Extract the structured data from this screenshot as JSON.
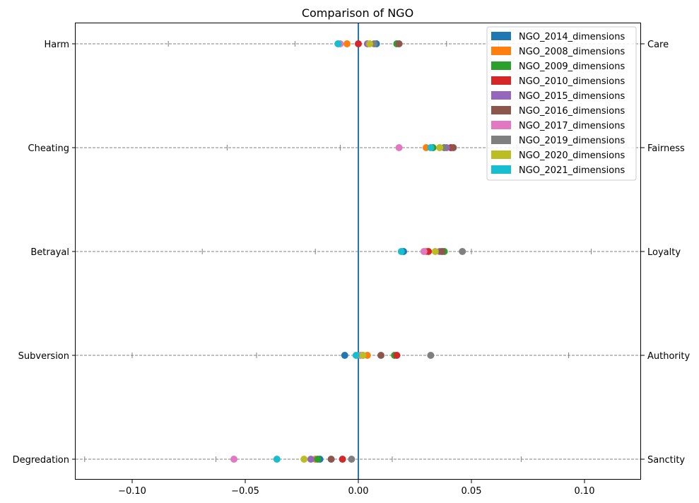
{
  "chart_data": {
    "type": "scatter",
    "title": "Comparison of NGO",
    "xlim": [
      -0.125,
      0.125
    ],
    "x_ticks": [
      -0.1,
      -0.05,
      0.0,
      0.05,
      0.1
    ],
    "x_tick_labels": [
      "−0.10",
      "−0.05",
      "0.00",
      "0.05",
      "0.10"
    ],
    "categories_left": [
      "Harm",
      "Cheating",
      "Betrayal",
      "Subversion",
      "Degredation"
    ],
    "categories_right": [
      "Care",
      "Fairness",
      "Loyalty",
      "Authority",
      "Sanctity"
    ],
    "grid": "horizontal dashed lines per category",
    "zero_line": true,
    "legend_position": "top-right",
    "range_ticks": [
      [
        -0.084,
        -0.028,
        0.039,
        0.062
      ],
      [
        -0.058,
        -0.008,
        0.07
      ],
      [
        -0.069,
        -0.019,
        0.05,
        0.103
      ],
      [
        -0.1,
        -0.045,
        0.093
      ],
      [
        -0.121,
        -0.063,
        0.015,
        0.072
      ]
    ],
    "series": [
      {
        "name": "NGO_2014_dimensions",
        "color": "#1f77b4",
        "values": [
          0.008,
          0.038,
          0.02,
          -0.006,
          -0.017
        ]
      },
      {
        "name": "NGO_2008_dimensions",
        "color": "#ff7f0e",
        "values": [
          -0.005,
          0.03,
          0.03,
          0.004,
          -0.019
        ]
      },
      {
        "name": "NGO_2009_dimensions",
        "color": "#2ca02c",
        "values": [
          0.017,
          0.033,
          0.038,
          0.016,
          -0.018
        ]
      },
      {
        "name": "NGO_2010_dimensions",
        "color": "#d62728",
        "values": [
          0.0,
          0.041,
          0.031,
          0.017,
          -0.007
        ]
      },
      {
        "name": "NGO_2015_dimensions",
        "color": "#9467bd",
        "values": [
          0.004,
          0.039,
          0.036,
          0.002,
          -0.021
        ]
      },
      {
        "name": "NGO_2016_dimensions",
        "color": "#8c564b",
        "values": [
          0.018,
          0.042,
          0.037,
          0.01,
          -0.012
        ]
      },
      {
        "name": "NGO_2017_dimensions",
        "color": "#e377c2",
        "values": [
          -0.008,
          0.018,
          0.029,
          0.001,
          -0.055
        ]
      },
      {
        "name": "NGO_2019_dimensions",
        "color": "#7f7f7f",
        "values": [
          0.007,
          0.038,
          0.046,
          0.032,
          -0.003
        ]
      },
      {
        "name": "NGO_2020_dimensions",
        "color": "#bcbd22",
        "values": [
          0.005,
          0.036,
          0.034,
          0.002,
          -0.024
        ]
      },
      {
        "name": "NGO_2021_dimensions",
        "color": "#17becf",
        "values": [
          -0.009,
          0.032,
          0.019,
          -0.001,
          -0.036
        ]
      }
    ],
    "colors": {
      "zero_line": "#1f77b4",
      "grid": "#808080"
    }
  }
}
